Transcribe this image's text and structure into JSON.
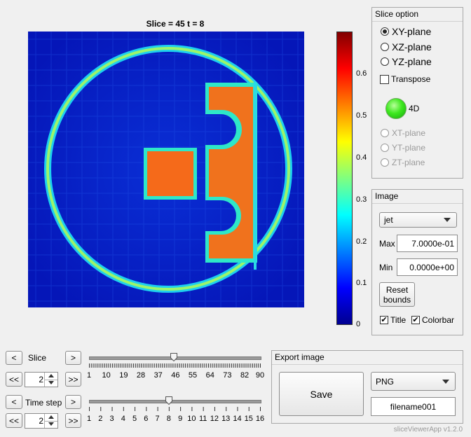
{
  "figure": {
    "title": "Slice = 45 t = 8",
    "colorbar_ticks": [
      "0.6",
      "0.5",
      "0.4",
      "0.3",
      "0.2",
      "0.1",
      "0"
    ]
  },
  "slice_option": {
    "title": "Slice option",
    "planes": [
      {
        "label": "XY-plane",
        "selected": true
      },
      {
        "label": "XZ-plane",
        "selected": false
      },
      {
        "label": "YZ-plane",
        "selected": false
      }
    ],
    "transpose_label": "Transpose",
    "transpose_checked": false,
    "mode_label": "4D",
    "mode_indicator_color": "#2ecc1a",
    "time_planes": [
      {
        "label": "XT-plane"
      },
      {
        "label": "YT-plane"
      },
      {
        "label": "ZT-plane"
      }
    ]
  },
  "image": {
    "title": "Image",
    "colormap": "jet",
    "max_label": "Max",
    "max_value": "7.0000e-01",
    "min_label": "Min",
    "min_value": "0.0000e+00",
    "reset_label_line1": "Reset",
    "reset_label_line2": "bounds",
    "title_check_label": "Title",
    "title_checked": true,
    "colorbar_check_label": "Colorbar",
    "colorbar_checked": true
  },
  "slice_control": {
    "label": "Slice",
    "prev": "<",
    "next": ">",
    "first": "<<",
    "last": ">>",
    "step": "2",
    "slider_value": 45,
    "slider_min": 1,
    "slider_max": 90,
    "tick_labels": [
      "1",
      "10",
      "19",
      "28",
      "37",
      "46",
      "55",
      "64",
      "73",
      "82",
      "90"
    ]
  },
  "time_control": {
    "label": "Time step",
    "prev": "<",
    "next": ">",
    "first": "<<",
    "last": ">>",
    "step": "2",
    "slider_value": 8,
    "slider_min": 1,
    "slider_max": 16,
    "tick_labels": [
      "1",
      "2",
      "3",
      "4",
      "5",
      "6",
      "7",
      "8",
      "9",
      "10",
      "11",
      "12",
      "13",
      "14",
      "15",
      "16"
    ]
  },
  "export": {
    "title": "Export image",
    "save_label": "Save",
    "format": "PNG",
    "filename": "filename001"
  },
  "footer": {
    "version": "sliceViewerApp v1.2.0"
  }
}
